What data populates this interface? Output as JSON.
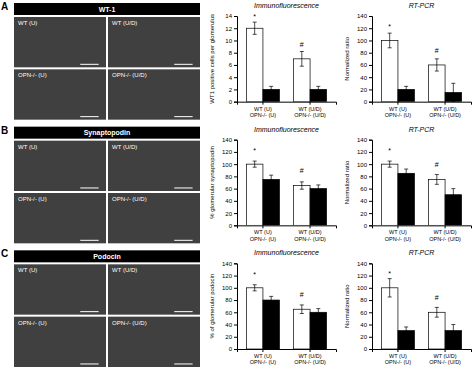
{
  "figure": {
    "panel_labels": [
      "A",
      "B",
      "C"
    ],
    "image_titles": [
      "WT-1",
      "Synaptopodin",
      "Podocin"
    ],
    "image_labels": [
      [
        "WT (U)",
        "WT (U/D)"
      ],
      [
        "OPN-/- (U)",
        "OPN-/- (U/D)"
      ]
    ],
    "image_color": "#404040",
    "title_bar_color": "#000000"
  },
  "chart_data": [
    {
      "type": "bar",
      "title": "Immunofluorescence",
      "ylabel": "WT1 positive cells per glomerulus",
      "categories": [
        "WT (U)\nOPN-/- (U)",
        "WT (U/D)\nOPN-/- (U/D)"
      ],
      "series": [
        {
          "color": "#ffffff",
          "values": [
            12,
            7
          ],
          "errors": [
            1.0,
            1.2
          ]
        },
        {
          "color": "#000000",
          "values": [
            2,
            2
          ],
          "errors": [
            0.5,
            0.5
          ]
        }
      ],
      "ylim": [
        0,
        14
      ],
      "yticks": [
        0,
        2,
        4,
        6,
        8,
        10,
        12,
        14
      ],
      "grid": false,
      "annotations": [
        {
          "text": "*",
          "category": 0,
          "series": 0,
          "y": 13.5
        },
        {
          "text": "#",
          "category": 1,
          "series": 0,
          "y": 9
        }
      ]
    },
    {
      "type": "bar",
      "title": "RT-PCR",
      "ylabel": "Normalized ratio",
      "categories": [
        "WT (U)\nOPN-/- (U)",
        "WT (U/D)\nOPN-/- (U/D)"
      ],
      "series": [
        {
          "color": "#ffffff",
          "values": [
            100,
            60
          ],
          "errors": [
            12,
            10
          ]
        },
        {
          "color": "#000000",
          "values": [
            20,
            15
          ],
          "errors": [
            5,
            15
          ]
        }
      ],
      "ylim": [
        0,
        140
      ],
      "yticks": [
        0,
        20,
        40,
        60,
        80,
        100,
        120,
        140
      ],
      "grid": false,
      "annotations": [
        {
          "text": "*",
          "category": 0,
          "series": 0,
          "y": 118
        },
        {
          "text": "#",
          "category": 1,
          "series": 0,
          "y": 80
        }
      ]
    },
    {
      "type": "bar",
      "title": "Immunofluorescence",
      "ylabel": "% glomerular synaptopodin",
      "categories": [
        "WT (U)\nOPN-/- (U)",
        "WT (U/D)\nOPN-/- (U/D)"
      ],
      "series": [
        {
          "color": "#ffffff",
          "values": [
            100,
            65
          ],
          "errors": [
            5,
            6
          ]
        },
        {
          "color": "#000000",
          "values": [
            75,
            60
          ],
          "errors": [
            7,
            6
          ]
        }
      ],
      "ylim": [
        0,
        140
      ],
      "yticks": [
        0,
        20,
        40,
        60,
        80,
        100,
        120,
        140
      ],
      "grid": false,
      "annotations": [
        {
          "text": "*",
          "category": 0,
          "series": 0,
          "y": 118
        },
        {
          "text": "#",
          "category": 1,
          "series": 0,
          "y": 85
        }
      ]
    },
    {
      "type": "bar",
      "title": "RT-PCR",
      "ylabel": "Normalized ratio",
      "categories": [
        "WT (U)\nOPN-/- (U)",
        "WT (U/D)\nOPN-/- (U/D)"
      ],
      "series": [
        {
          "color": "#ffffff",
          "values": [
            100,
            75
          ],
          "errors": [
            5,
            8
          ]
        },
        {
          "color": "#000000",
          "values": [
            85,
            50
          ],
          "errors": [
            7,
            10
          ]
        }
      ],
      "ylim": [
        0,
        140
      ],
      "yticks": [
        0,
        20,
        40,
        60,
        80,
        100,
        120,
        140
      ],
      "grid": false,
      "annotations": [
        {
          "text": "*",
          "category": 0,
          "series": 0,
          "y": 118
        },
        {
          "text": "#",
          "category": 1,
          "series": 0,
          "y": 95
        }
      ]
    },
    {
      "type": "bar",
      "title": "Immunofluorescence",
      "ylabel": "% of glomerular podocin",
      "categories": [
        "WT (U)\nOPN-/- (U)",
        "WT (U/D)\nOPN-/- (U/D)"
      ],
      "series": [
        {
          "color": "#ffffff",
          "values": [
            100,
            65
          ],
          "errors": [
            5,
            7
          ]
        },
        {
          "color": "#000000",
          "values": [
            80,
            60
          ],
          "errors": [
            6,
            6
          ]
        }
      ],
      "ylim": [
        0,
        140
      ],
      "yticks": [
        0,
        20,
        40,
        60,
        80,
        100,
        120,
        140
      ],
      "grid": false,
      "annotations": [
        {
          "text": "*",
          "category": 0,
          "series": 0,
          "y": 118
        },
        {
          "text": "#",
          "category": 1,
          "series": 0,
          "y": 85
        }
      ]
    },
    {
      "type": "bar",
      "title": "RT-PCR",
      "ylabel": "Normalized ratio",
      "categories": [
        "WT (U)\nOPN-/- (U)",
        "WT (U/D)\nOPN-/- (U/D)"
      ],
      "series": [
        {
          "color": "#ffffff",
          "values": [
            100,
            60
          ],
          "errors": [
            15,
            8
          ]
        },
        {
          "color": "#000000",
          "values": [
            30,
            30
          ],
          "errors": [
            6,
            10
          ]
        }
      ],
      "ylim": [
        0,
        140
      ],
      "yticks": [
        0,
        20,
        40,
        60,
        80,
        100,
        120,
        140
      ],
      "grid": false,
      "annotations": [
        {
          "text": "*",
          "category": 0,
          "series": 0,
          "y": 120
        },
        {
          "text": "#",
          "category": 1,
          "series": 0,
          "y": 80
        }
      ]
    }
  ]
}
